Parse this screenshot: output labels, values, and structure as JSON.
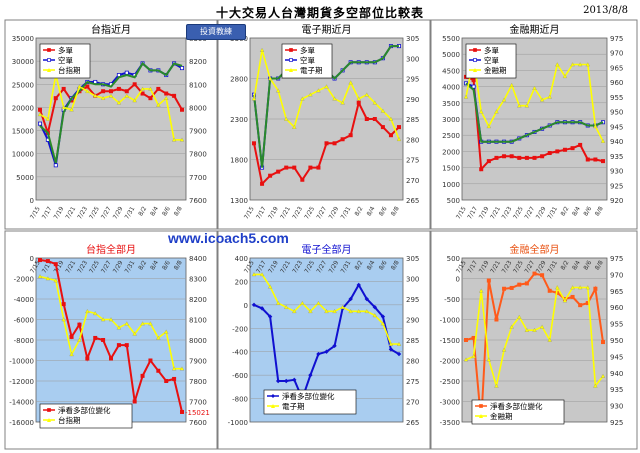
{
  "header": {
    "title": "十大交易人台灣期貨多空部位比較表",
    "date": "2013/8/8",
    "site_url": "www.icoach5.com",
    "logo_text": "投資教練"
  },
  "colors": {
    "plot_gray": "#c8c8c8",
    "plot_blue": "#a9cdf0",
    "red": "#e81010",
    "blue": "#1010d0",
    "green": "#2a8a2a",
    "yellow": "#ffff00",
    "orange": "#ff5a1a"
  },
  "chart_data": [
    {
      "type": "line",
      "title": "台指近月",
      "x": [
        "7/15",
        "7/16",
        "7/17",
        "7/18",
        "7/19",
        "7/22",
        "7/23",
        "7/24",
        "7/25",
        "7/26",
        "7/29",
        "7/30",
        "7/31",
        "8/1",
        "8/2",
        "8/5",
        "8/6",
        "8/7",
        "8/8"
      ],
      "xticks": [
        "7/15",
        "7/17",
        "7/19",
        "7/21",
        "7/23",
        "7/25",
        "7/27",
        "7/29",
        "7/31",
        "8/2",
        "8/4",
        "8/6",
        "8/8"
      ],
      "ylim": [
        0,
        35000
      ],
      "yticks": [
        "0",
        "5000",
        "10000",
        "15000",
        "20000",
        "25000",
        "30000",
        "35000"
      ],
      "y2lim": [
        7600,
        8300
      ],
      "y2ticks": [
        "7600",
        "7700",
        "7800",
        "7900",
        "8000",
        "8100",
        "8200",
        "8300"
      ],
      "legend": [
        "多單",
        "空單",
        "台指期"
      ],
      "series": [
        {
          "name": "多單",
          "axis": "left",
          "color": "red",
          "marker": "square",
          "values": [
            19500,
            14500,
            22000,
            24000,
            21500,
            23500,
            24500,
            22500,
            23500,
            23500,
            24000,
            23500,
            25000,
            23000,
            22000,
            24000,
            23000,
            22500,
            19500
          ]
        },
        {
          "name": "空單",
          "axis": "left",
          "color": "blue",
          "marker": "square",
          "values": [
            16500,
            13000,
            7500,
            19500,
            22000,
            24000,
            25500,
            25500,
            25000,
            25000,
            27000,
            27500,
            27000,
            29500,
            28000,
            28000,
            27000,
            29500,
            28500
          ]
        },
        {
          "name": "",
          "axis": "left",
          "color": "green",
          "marker": "none",
          "values": [
            16000,
            14500,
            8000,
            19000,
            22000,
            23500,
            25500,
            25000,
            25000,
            24500,
            26500,
            27000,
            26500,
            29500,
            28000,
            28000,
            27000,
            29500,
            29000
          ]
        },
        {
          "name": "台指期",
          "axis": "right",
          "color": "yellow",
          "marker": "triangle",
          "values": [
            7970,
            7950,
            8140,
            8000,
            7990,
            8090,
            8070,
            8050,
            8040,
            8050,
            8020,
            8050,
            8030,
            8080,
            8080,
            8010,
            8040,
            7860,
            7860
          ]
        }
      ]
    },
    {
      "type": "line",
      "title": "電子期近月",
      "x": [
        "7/15",
        "7/16",
        "7/17",
        "7/18",
        "7/19",
        "7/22",
        "7/23",
        "7/24",
        "7/25",
        "7/26",
        "7/29",
        "7/30",
        "7/31",
        "8/1",
        "8/2",
        "8/5",
        "8/6",
        "8/7",
        "8/8"
      ],
      "xticks": [
        "7/15",
        "7/17",
        "7/19",
        "7/21",
        "7/23",
        "7/25",
        "7/27",
        "7/29",
        "7/31",
        "8/2",
        "8/4",
        "8/6",
        "8/8"
      ],
      "ylim": [
        1300,
        3300
      ],
      "yticks": [
        "1300",
        "1800",
        "2300",
        "2800",
        "3300"
      ],
      "y2lim": [
        265,
        305
      ],
      "y2ticks": [
        "265",
        "270",
        "275",
        "280",
        "285",
        "290",
        "295",
        "300",
        "305"
      ],
      "legend": [
        "多單",
        "空單",
        "電子期"
      ],
      "series": [
        {
          "name": "多單",
          "axis": "left",
          "color": "red",
          "marker": "square",
          "values": [
            2000,
            1500,
            1600,
            1650,
            1700,
            1700,
            1550,
            1700,
            1700,
            2000,
            2000,
            2050,
            2100,
            2500,
            2300,
            2300,
            2200,
            2100,
            2200
          ]
        },
        {
          "name": "空單",
          "axis": "left",
          "color": "blue",
          "marker": "square",
          "values": [
            2600,
            1700,
            2800,
            2800,
            2900,
            2900,
            2950,
            3000,
            2950,
            2900,
            2800,
            2900,
            3000,
            3000,
            3000,
            3000,
            3050,
            3200,
            3200
          ]
        },
        {
          "name": "",
          "axis": "left",
          "color": "green",
          "marker": "none",
          "values": [
            2600,
            1700,
            2800,
            2800,
            2900,
            2900,
            2950,
            3000,
            2950,
            2900,
            2800,
            2900,
            3000,
            3000,
            3000,
            3000,
            3050,
            3200,
            3200
          ]
        },
        {
          "name": "電子期",
          "axis": "right",
          "color": "yellow",
          "marker": "triangle",
          "values": [
            290,
            302,
            295,
            292,
            285,
            283,
            290,
            291,
            292,
            293,
            290,
            289,
            294,
            290,
            291,
            289,
            287,
            285,
            280
          ]
        }
      ]
    },
    {
      "type": "line",
      "title": "金融期近月",
      "x": [
        "7/15",
        "7/16",
        "7/17",
        "7/18",
        "7/19",
        "7/22",
        "7/23",
        "7/24",
        "7/25",
        "7/26",
        "7/29",
        "7/30",
        "7/31",
        "8/1",
        "8/2",
        "8/5",
        "8/6",
        "8/7",
        "8/8"
      ],
      "xticks": [
        "7/15",
        "7/17",
        "7/19",
        "7/21",
        "7/23",
        "7/25",
        "7/27",
        "7/29",
        "7/31",
        "8/2",
        "8/4",
        "8/6",
        "8/8"
      ],
      "ylim": [
        500,
        5500
      ],
      "yticks": [
        "500",
        "1000",
        "1500",
        "2000",
        "2500",
        "3000",
        "3500",
        "4000",
        "4500",
        "5000",
        "5500"
      ],
      "y2lim": [
        920,
        975
      ],
      "y2ticks": [
        "920",
        "925",
        "930",
        "935",
        "940",
        "945",
        "950",
        "955",
        "960",
        "965",
        "970",
        "975"
      ],
      "legend": [
        "多單",
        "空單",
        "金融期"
      ],
      "series": [
        {
          "name": "多單",
          "axis": "left",
          "color": "red",
          "marker": "square",
          "values": [
            4300,
            4200,
            1450,
            1700,
            1800,
            1850,
            1850,
            1800,
            1800,
            1800,
            1850,
            1950,
            2000,
            2050,
            2100,
            2200,
            1750,
            1750,
            1700
          ]
        },
        {
          "name": "空單",
          "axis": "left",
          "color": "blue",
          "marker": "square",
          "values": [
            4100,
            4000,
            2300,
            2300,
            2300,
            2300,
            2300,
            2400,
            2500,
            2600,
            2700,
            2800,
            2900,
            2900,
            2900,
            2900,
            2800,
            2800,
            2900
          ]
        },
        {
          "name": "",
          "axis": "left",
          "color": "green",
          "marker": "none",
          "values": [
            4100,
            3900,
            2300,
            2300,
            2300,
            2300,
            2300,
            2400,
            2500,
            2600,
            2700,
            2800,
            2900,
            2900,
            2900,
            2900,
            2800,
            2800,
            2900
          ]
        },
        {
          "name": "金融期",
          "axis": "right",
          "color": "yellow",
          "marker": "triangle",
          "values": [
            955,
            968,
            950,
            945,
            950,
            954,
            959,
            952,
            952,
            958,
            954,
            955,
            966,
            962,
            966,
            966,
            966,
            945,
            940
          ]
        }
      ]
    },
    {
      "type": "line",
      "title": "台指全部月",
      "x": [
        "7/15",
        "7/16",
        "7/17",
        "7/18",
        "7/19",
        "7/22",
        "7/23",
        "7/24",
        "7/25",
        "7/26",
        "7/29",
        "7/30",
        "7/31",
        "8/1",
        "8/2",
        "8/5",
        "8/6",
        "8/7",
        "8/8"
      ],
      "xticks": [
        "7/15",
        "7/17",
        "7/19",
        "7/21",
        "7/23",
        "7/25",
        "7/27",
        "7/29",
        "7/31",
        "8/2",
        "8/4",
        "8/6",
        "8/8"
      ],
      "ylim": [
        -16000,
        0
      ],
      "yticks": [
        "-16000",
        "-14000",
        "-12000",
        "-10000",
        "-8000",
        "-6000",
        "-4000",
        "-2000",
        "0"
      ],
      "y2lim": [
        7600,
        8400
      ],
      "y2ticks": [
        "7600",
        "7700",
        "7800",
        "7900",
        "8000",
        "8100",
        "8200",
        "8300",
        "8400"
      ],
      "legend": [
        "淨看多部位變化",
        "台指期"
      ],
      "end_label": "-15021",
      "series": [
        {
          "name": "淨看多部位變化",
          "axis": "left",
          "color": "red",
          "marker": "square",
          "values": [
            -200,
            -300,
            -600,
            -4500,
            -7700,
            -6500,
            -9800,
            -7800,
            -8000,
            -9800,
            -8500,
            -8500,
            -14000,
            -11500,
            -10000,
            -11000,
            -12000,
            -11800,
            -15021
          ]
        },
        {
          "name": "台指期",
          "axis": "right",
          "color": "yellow",
          "marker": "triangle",
          "values": [
            8310,
            8300,
            8290,
            8100,
            7930,
            8000,
            8140,
            8130,
            8100,
            8100,
            8060,
            8080,
            8030,
            8080,
            8080,
            8010,
            8040,
            7860,
            7860
          ]
        }
      ]
    },
    {
      "type": "line",
      "title": "電子全部月",
      "x": [
        "7/15",
        "7/16",
        "7/17",
        "7/18",
        "7/19",
        "7/22",
        "7/23",
        "7/24",
        "7/25",
        "7/26",
        "7/29",
        "7/30",
        "7/31",
        "8/1",
        "8/2",
        "8/5",
        "8/6",
        "8/7",
        "8/8"
      ],
      "xticks": [
        "7/15",
        "7/17",
        "7/19",
        "7/21",
        "7/23",
        "7/25",
        "7/27",
        "7/29",
        "7/31",
        "8/2",
        "8/4",
        "8/6",
        "8/8"
      ],
      "ylim": [
        -1000,
        400
      ],
      "yticks": [
        "-1000",
        "-800",
        "-600",
        "-400",
        "-200",
        "0",
        "200",
        "400"
      ],
      "y2lim": [
        265,
        305
      ],
      "y2ticks": [
        "265",
        "270",
        "275",
        "280",
        "285",
        "290",
        "295",
        "300",
        "305"
      ],
      "legend": [
        "淨看多部位變化",
        "電子期"
      ],
      "series": [
        {
          "name": "淨看多部位變化",
          "axis": "left",
          "color": "blue",
          "marker": "diamond",
          "values": [
            0,
            -30,
            -100,
            -650,
            -650,
            -640,
            -800,
            -600,
            -420,
            -400,
            -350,
            -30,
            50,
            170,
            50,
            -20,
            -100,
            -380,
            -420
          ]
        },
        {
          "name": "電子期",
          "axis": "right",
          "color": "yellow",
          "marker": "triangle",
          "values": [
            301,
            301,
            298,
            294,
            293,
            292,
            294,
            292,
            294,
            292,
            292,
            293,
            292,
            292,
            292,
            291,
            289,
            284,
            284
          ]
        }
      ]
    },
    {
      "type": "line",
      "title": "金融全部月",
      "x": [
        "7/15",
        "7/16",
        "7/17",
        "7/18",
        "7/19",
        "7/22",
        "7/23",
        "7/24",
        "7/25",
        "7/26",
        "7/29",
        "7/30",
        "7/31",
        "8/1",
        "8/2",
        "8/5",
        "8/6",
        "8/7",
        "8/8"
      ],
      "xticks": [
        "7/15",
        "7/17",
        "7/19",
        "7/21",
        "7/23",
        "7/25",
        "7/27",
        "7/29",
        "7/31",
        "8/2",
        "8/4",
        "8/6",
        "8/8"
      ],
      "ylim": [
        -3500,
        500
      ],
      "yticks": [
        "-3500",
        "-3000",
        "-2500",
        "-2000",
        "-1500",
        "-1000",
        "-500",
        "0",
        "500"
      ],
      "y2lim": [
        925,
        975
      ],
      "y2ticks": [
        "925",
        "930",
        "935",
        "940",
        "945",
        "950",
        "955",
        "960",
        "965",
        "970",
        "975"
      ],
      "legend": [
        "淨看多部位變化",
        "金融期"
      ],
      "series": [
        {
          "name": "淨看多部位變化",
          "axis": "left",
          "color": "orange",
          "marker": "square",
          "values": [
            -1500,
            -1450,
            -3500,
            -50,
            -1000,
            -250,
            -230,
            -150,
            -120,
            120,
            80,
            -300,
            -350,
            -500,
            -450,
            -650,
            -600,
            -250,
            -1550
          ]
        },
        {
          "name": "金融期",
          "axis": "right",
          "color": "yellow",
          "marker": "triangle",
          "values": [
            944,
            945,
            965,
            944,
            936,
            947,
            954,
            957,
            953,
            953,
            954,
            950,
            966,
            962,
            966,
            966,
            966,
            936,
            939
          ]
        }
      ]
    }
  ]
}
